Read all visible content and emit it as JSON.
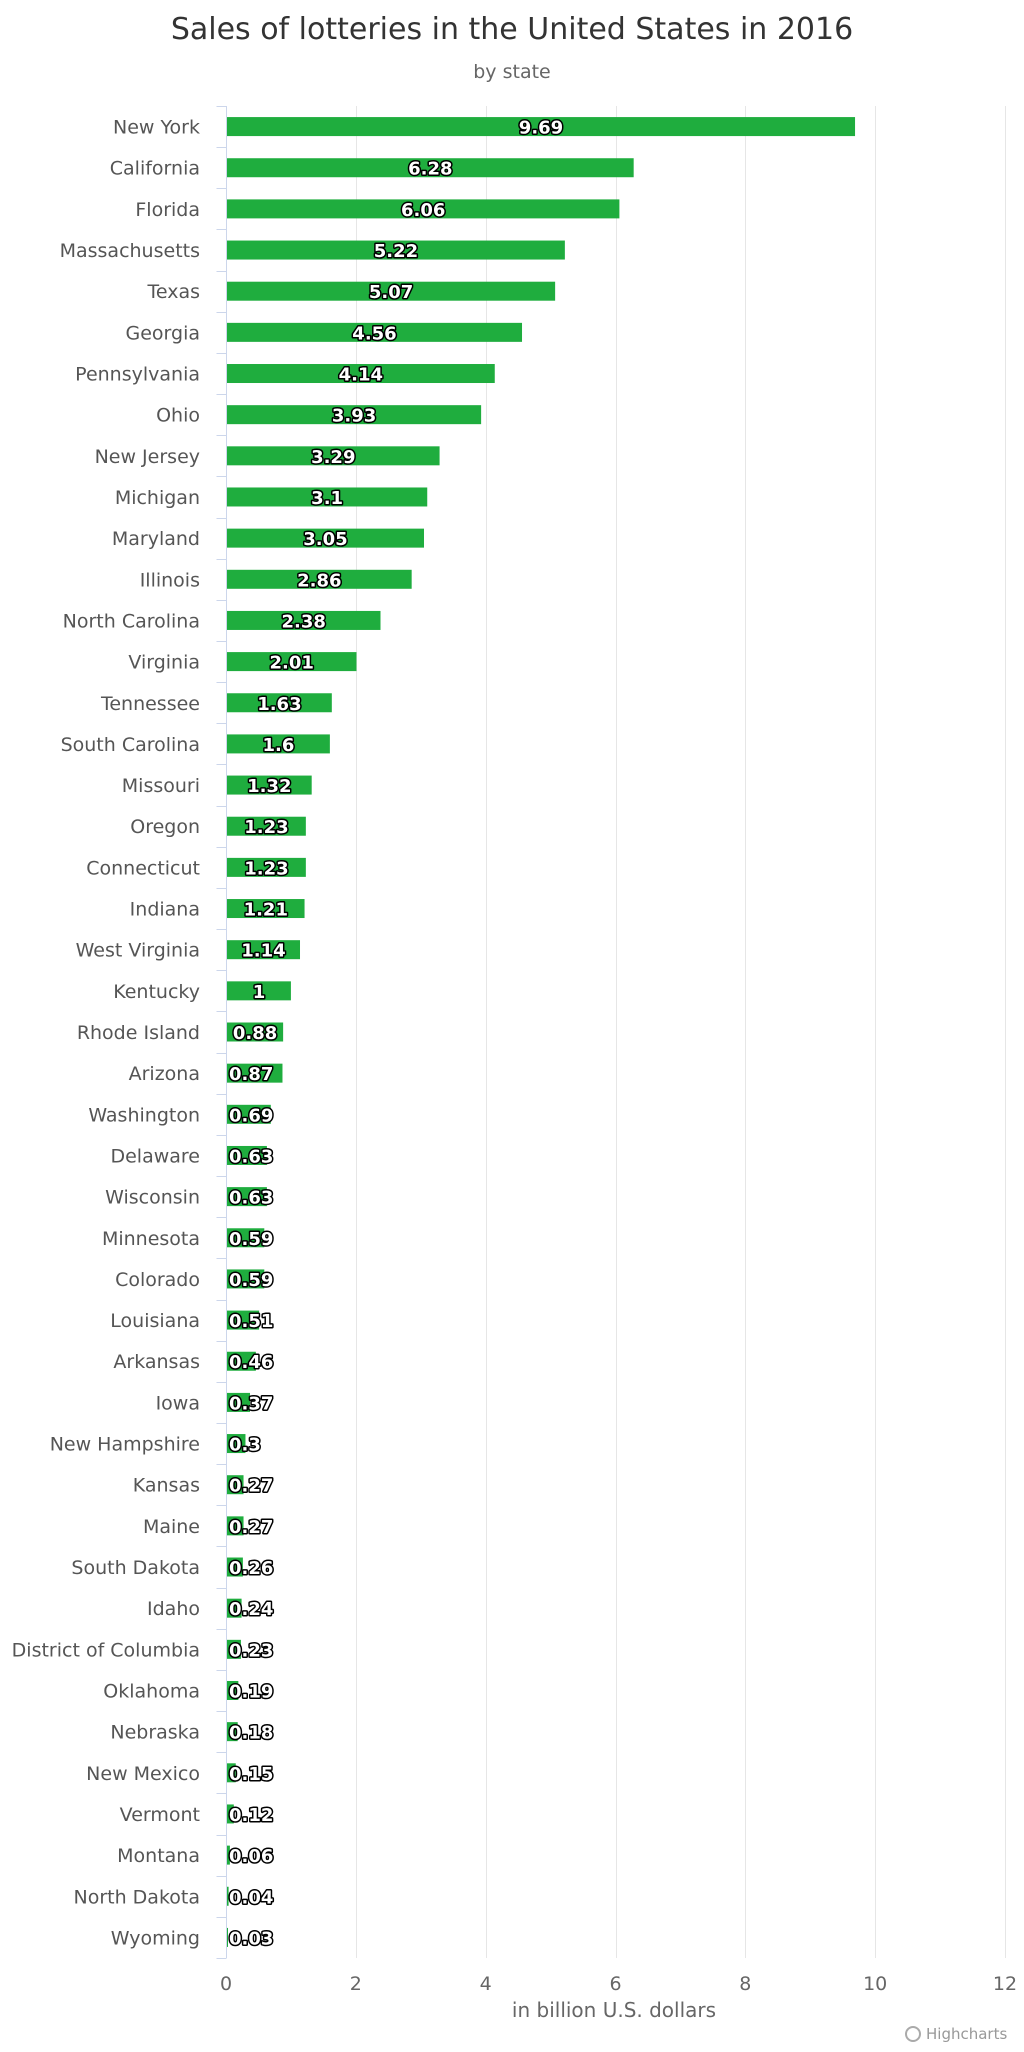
{
  "chart_data": {
    "type": "bar",
    "orientation": "horizontal",
    "title": "Sales of lotteries in the United States in 2016",
    "subtitle": "by state",
    "xlabel": "in billion U.S. dollars",
    "ylabel": "",
    "xlim": [
      0,
      12
    ],
    "ticks": [
      0,
      2,
      4,
      6,
      8,
      10,
      12
    ],
    "grid": true,
    "data_labels": true,
    "bar_color": "#1fad3e",
    "categories": [
      "New York",
      "California",
      "Florida",
      "Massachusetts",
      "Texas",
      "Georgia",
      "Pennsylvania",
      "Ohio",
      "New Jersey",
      "Michigan",
      "Maryland",
      "Illinois",
      "North Carolina",
      "Virginia",
      "Tennessee",
      "South Carolina",
      "Missouri",
      "Oregon",
      "Connecticut",
      "Indiana",
      "West Virginia",
      "Kentucky",
      "Rhode Island",
      "Arizona",
      "Washington",
      "Delaware",
      "Wisconsin",
      "Minnesota",
      "Colorado",
      "Louisiana",
      "Arkansas",
      "Iowa",
      "New Hampshire",
      "Kansas",
      "Maine",
      "South Dakota",
      "Idaho",
      "District of Columbia",
      "Oklahoma",
      "Nebraska",
      "New Mexico",
      "Vermont",
      "Montana",
      "North Dakota",
      "Wyoming"
    ],
    "values": [
      9.69,
      6.28,
      6.06,
      5.22,
      5.07,
      4.56,
      4.14,
      3.93,
      3.29,
      3.1,
      3.05,
      2.86,
      2.38,
      2.01,
      1.63,
      1.6,
      1.32,
      1.23,
      1.23,
      1.21,
      1.14,
      1,
      0.88,
      0.87,
      0.69,
      0.63,
      0.63,
      0.59,
      0.59,
      0.51,
      0.46,
      0.37,
      0.3,
      0.27,
      0.27,
      0.26,
      0.24,
      0.23,
      0.19,
      0.18,
      0.15,
      0.12,
      0.06,
      0.04,
      0.03
    ]
  },
  "credits": "Highcharts"
}
